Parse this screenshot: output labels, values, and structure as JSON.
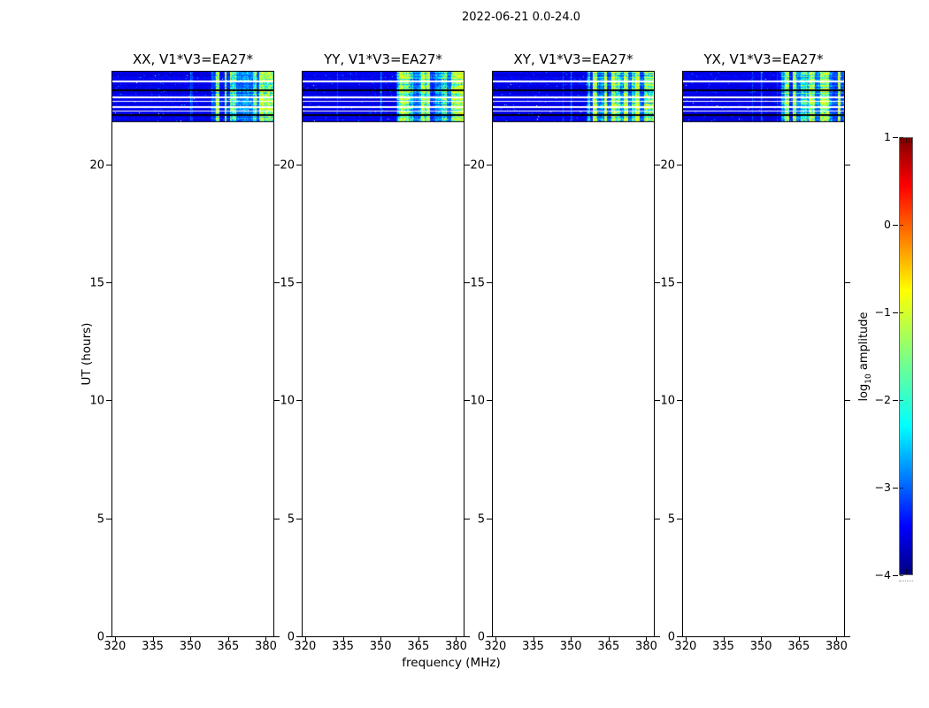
{
  "figure": {
    "suptitle": "2022-06-21 0.0-24.0",
    "xlabel": "frequency (MHz)",
    "ylabel": "UT (hours)"
  },
  "panels": [
    {
      "label": "XX, V1*V3=EA27*",
      "seed": 7
    },
    {
      "label": "YY, V1*V3=EA27*",
      "seed": 113
    },
    {
      "label": "XY, V1*V3=EA27*",
      "seed": 221
    },
    {
      "label": "YX, V1*V3=EA27*",
      "seed": 334
    }
  ],
  "axes": {
    "x_tick_labels": [
      "320",
      "335",
      "350",
      "365",
      "380"
    ],
    "x_tick_values_mhz": [
      320,
      335,
      350,
      365,
      380
    ],
    "x_range_mhz": [
      319,
      383
    ],
    "y_tick_labels": [
      "0",
      "5",
      "10",
      "15",
      "20"
    ],
    "y_tick_values_hours": [
      0,
      5,
      10,
      15,
      20
    ],
    "y_range_hours": [
      0,
      24
    ]
  },
  "colorbar": {
    "tick_labels": [
      "1",
      "0",
      "−1",
      "−2",
      "−3",
      "−4"
    ],
    "tick_values": [
      1,
      0,
      -1,
      -2,
      -3,
      -4
    ],
    "range": [
      -4,
      1
    ],
    "colormap": "jet",
    "label_parts": {
      "prefix": "log",
      "sub": "10",
      "suffix": " amplitude"
    }
  },
  "chart_data": {
    "type": "heatmap",
    "title": "2022-06-21 0.0-24.0",
    "subplot_titles": [
      "XX, V1*V3=EA27*",
      "YY, V1*V3=EA27*",
      "XY, V1*V3=EA27*",
      "YX, V1*V3=EA27*"
    ],
    "xlabel": "frequency (MHz)",
    "ylabel": "UT (hours)",
    "x_ticks_mhz": [
      320,
      335,
      350,
      365,
      380
    ],
    "x_range_mhz": [
      319,
      383
    ],
    "y_ticks_hours": [
      0,
      5,
      10,
      15,
      20
    ],
    "y_range_hours": [
      0,
      24
    ],
    "colorbar_label": "log10 amplitude",
    "colorbar_ticks": [
      1,
      0,
      -1,
      -2,
      -3,
      -4
    ],
    "colorbar_range_log10": [
      -4,
      1
    ],
    "colormap": "jet",
    "data_present_hours": [
      21.86,
      24.0
    ],
    "baseline_log10_amplitude": -3.3,
    "rfi_enhanced_band_mhz": [
      357,
      383
    ],
    "rfi_enhanced_log10_amplitude": -1.8,
    "mid_band_feature_mhz": 350,
    "stripes": [
      {
        "start_hour": 24.0,
        "end_hour": 23.63,
        "kind": "data"
      },
      {
        "start_hour": 23.63,
        "end_hour": 23.55,
        "kind": "gap_white"
      },
      {
        "start_hour": 23.55,
        "end_hour": 23.25,
        "kind": "data"
      },
      {
        "start_hour": 23.25,
        "end_hour": 23.18,
        "kind": "gap_black"
      },
      {
        "start_hour": 23.18,
        "end_hour": 22.95,
        "kind": "data"
      },
      {
        "start_hour": 22.95,
        "end_hour": 22.88,
        "kind": "gap_white"
      },
      {
        "start_hour": 22.88,
        "end_hour": 22.76,
        "kind": "data"
      },
      {
        "start_hour": 22.76,
        "end_hour": 22.73,
        "kind": "gap_white"
      },
      {
        "start_hour": 22.73,
        "end_hour": 22.54,
        "kind": "data"
      },
      {
        "start_hour": 22.54,
        "end_hour": 22.46,
        "kind": "gap_white"
      },
      {
        "start_hour": 22.46,
        "end_hour": 22.35,
        "kind": "data"
      },
      {
        "start_hour": 22.35,
        "end_hour": 22.31,
        "kind": "gap_white"
      },
      {
        "start_hour": 22.31,
        "end_hour": 22.2,
        "kind": "data"
      },
      {
        "start_hour": 22.2,
        "end_hour": 22.13,
        "kind": "gap_black"
      },
      {
        "start_hour": 22.13,
        "end_hour": 21.9,
        "kind": "data"
      },
      {
        "start_hour": 21.9,
        "end_hour": 21.86,
        "kind": "gap_black"
      }
    ]
  }
}
